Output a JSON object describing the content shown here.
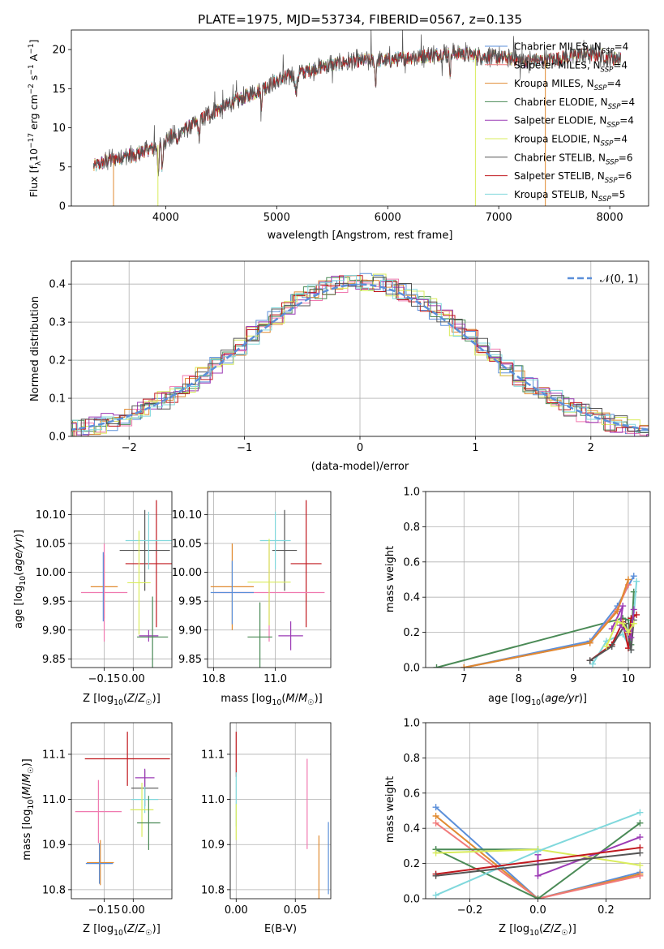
{
  "colors": {
    "Chabrier MILES": "#5b8fd9",
    "Salpeter MILES": "#f07a7a",
    "Kroupa MILES": "#e08a30",
    "Chabrier ELODIE": "#4a8a56",
    "Salpeter ELODIE": "#9c3bb5",
    "Kroupa ELODIE": "#d9ec5c",
    "Chabrier STELIB": "#555555",
    "Salpeter STELIB": "#c0181e",
    "Kroupa STELIB": "#80d8dc",
    "pink": "#f07ab0",
    "normal": "#5b8fd9"
  },
  "chart_data": [
    {
      "id": "spectrum",
      "type": "line",
      "title": "PLATE=1975, MJD=53734, FIBERID=0567, z=0.135",
      "xlabel": "wavelength [Angstrom, rest frame]",
      "ylabel": "Flux [f_λ 10^-17 erg cm^-2 s^-1 A^-1]",
      "xlim": [
        3150,
        8350
      ],
      "ylim": [
        0,
        22.5
      ],
      "xticks": [
        4000,
        5000,
        6000,
        7000,
        8000
      ],
      "yticks": [
        0,
        5,
        10,
        15,
        20
      ],
      "grid": false,
      "legend": "upper right",
      "legend_entries": [
        "Chabrier MILES, N_SSP=4",
        "Salpeter MILES, N_SSP=4",
        "Kroupa MILES, N_SSP=4",
        "Chabrier ELODIE, N_SSP=4",
        "Salpeter ELODIE, N_SSP=4",
        "Kroupa ELODIE, N_SSP=4",
        "Chabrier STELIB, N_SSP=6",
        "Salpeter STELIB, N_SSP=6",
        "Kroupa STELIB, N_SSP=5"
      ],
      "continuum": [
        [
          3350,
          5.0
        ],
        [
          3500,
          6.0
        ],
        [
          3700,
          6.5
        ],
        [
          3900,
          7.5
        ],
        [
          4000,
          8.5
        ],
        [
          4200,
          10.0
        ],
        [
          4400,
          11.8
        ],
        [
          4600,
          13.2
        ],
        [
          4800,
          14.5
        ],
        [
          5000,
          16.0
        ],
        [
          5200,
          17.0
        ],
        [
          5400,
          17.8
        ],
        [
          5600,
          18.4
        ],
        [
          5800,
          18.6
        ],
        [
          6000,
          18.6
        ],
        [
          6200,
          19.0
        ],
        [
          6400,
          19.3
        ],
        [
          6600,
          19.6
        ],
        [
          6800,
          19.2
        ],
        [
          7000,
          19.0
        ],
        [
          7200,
          18.6
        ],
        [
          7400,
          18.6
        ],
        [
          7600,
          19.0
        ],
        [
          7800,
          19.5
        ],
        [
          8000,
          19.0
        ],
        [
          8100,
          18.8
        ]
      ]
    },
    {
      "id": "residuals",
      "type": "line",
      "xlabel": "(data-model)/error",
      "ylabel": "Normed distribution",
      "xlim": [
        -2.5,
        2.5
      ],
      "ylim": [
        0,
        0.46
      ],
      "xticks": [
        -2,
        -1,
        0,
        1,
        2
      ],
      "yticks": [
        0.0,
        0.1,
        0.2,
        0.3,
        0.4
      ],
      "grid": true,
      "legend": "upper right",
      "legend_entries": [
        "𝒩(0, 1)"
      ]
    },
    {
      "id": "age-vs-Z",
      "type": "scatter",
      "xlabel": "Z [log10(Z/Z☉)]",
      "ylabel": "age  [log10(age/yr)]",
      "xlim": [
        -0.32,
        0.2
      ],
      "ylim": [
        9.835,
        10.14
      ],
      "xticks": [
        -0.15,
        0.0
      ],
      "yticks": [
        9.85,
        9.9,
        9.95,
        10.0,
        10.05,
        10.1
      ],
      "grid": true,
      "points": [
        {
          "model": "Salpeter STELIB",
          "x": 0.12,
          "xerr": 0.16,
          "y": 10.015,
          "yerr": 0.11
        },
        {
          "model": "Chabrier STELIB",
          "x": 0.06,
          "xerr": 0.13,
          "y": 10.038,
          "yerr": 0.07
        },
        {
          "model": "Kroupa STELIB",
          "x": 0.08,
          "xerr": 0.12,
          "y": 10.055,
          "yerr": 0.05
        },
        {
          "model": "Kroupa MILES",
          "x": -0.15,
          "xerr": 0.07,
          "y": 9.975,
          "yerr": 0.055
        },
        {
          "model": "pink",
          "x": -0.15,
          "xerr": 0.12,
          "y": 9.965,
          "yerr": 0.085
        },
        {
          "model": "Chabrier MILES",
          "x": -0.155,
          "xerr": 0.0,
          "y": 9.975,
          "yerr": 0.06
        },
        {
          "model": "Kroupa ELODIE",
          "x": 0.03,
          "xerr": 0.06,
          "y": 9.982,
          "yerr": 0.09
        },
        {
          "model": "Salpeter ELODIE",
          "x": 0.08,
          "xerr": 0.05,
          "y": 9.89,
          "yerr": 0.01
        },
        {
          "model": "Chabrier ELODIE",
          "x": 0.1,
          "xerr": 0.08,
          "y": 9.888,
          "yerr": 0.07
        }
      ]
    },
    {
      "id": "age-vs-mass",
      "type": "scatter",
      "xlabel": "mass [log10(M/M☉)]",
      "ylabel": "",
      "xlim": [
        10.78,
        11.18
      ],
      "ylim": [
        9.835,
        10.14
      ],
      "xticks": [
        10.8,
        11.0
      ],
      "yticks": [
        9.85,
        9.9,
        9.95,
        10.0,
        10.05,
        10.1
      ],
      "grid": true,
      "points": [
        {
          "model": "Salpeter STELIB",
          "x": 11.1,
          "xerr": 0.05,
          "y": 10.015,
          "yerr": 0.11
        },
        {
          "model": "Chabrier STELIB",
          "x": 11.03,
          "xerr": 0.04,
          "y": 10.038,
          "yerr": 0.07
        },
        {
          "model": "Kroupa STELIB",
          "x": 11.0,
          "xerr": 0.05,
          "y": 10.055,
          "yerr": 0.05
        },
        {
          "model": "Kroupa MILES",
          "x": 10.86,
          "xerr": 0.07,
          "y": 9.975,
          "yerr": 0.075
        },
        {
          "model": "pink",
          "x": 10.98,
          "xerr": 0.18,
          "y": 9.965,
          "yerr": 0.085
        },
        {
          "model": "Chabrier MILES",
          "x": 10.86,
          "xerr": 0.07,
          "y": 9.965,
          "yerr": 0.055
        },
        {
          "model": "Kroupa ELODIE",
          "x": 10.98,
          "xerr": 0.07,
          "y": 9.983,
          "yerr": 0.075
        },
        {
          "model": "Salpeter ELODIE",
          "x": 11.05,
          "xerr": 0.04,
          "y": 9.89,
          "yerr": 0.025
        },
        {
          "model": "Chabrier ELODIE",
          "x": 10.95,
          "xerr": 0.04,
          "y": 9.888,
          "yerr": 0.06
        }
      ]
    },
    {
      "id": "weight-vs-age",
      "type": "line",
      "xlabel": "age  [log10(age/yr)]",
      "ylabel": "mass weight",
      "xlim": [
        6.3,
        10.4
      ],
      "ylim": [
        0,
        1
      ],
      "xticks": [
        7,
        8,
        9,
        10
      ],
      "yticks": [
        0.0,
        0.2,
        0.4,
        0.6,
        0.8,
        1.0
      ],
      "grid": true,
      "series": [
        {
          "model": "Chabrier ELODIE",
          "x": [
            6.5,
            9.9,
            10.0,
            10.05,
            10.1
          ],
          "y": [
            0.0,
            0.28,
            0.27,
            0.13,
            0.43
          ]
        },
        {
          "model": "Chabrier MILES",
          "x": [
            7.0,
            9.3,
            9.8,
            10.1
          ],
          "y": [
            0.0,
            0.15,
            0.35,
            0.52
          ]
        },
        {
          "model": "Salpeter MILES",
          "x": [
            7.0,
            9.3,
            9.8,
            10.0
          ],
          "y": [
            0.0,
            0.14,
            0.33,
            0.47
          ]
        },
        {
          "model": "Kroupa MILES",
          "x": [
            7.0,
            9.3,
            9.8,
            10.0
          ],
          "y": [
            0.0,
            0.14,
            0.32,
            0.5
          ]
        },
        {
          "model": "Kroupa STELIB",
          "x": [
            9.35,
            9.6,
            9.9,
            10.05,
            10.15
          ],
          "y": [
            0.02,
            0.15,
            0.19,
            0.1,
            0.49
          ]
        },
        {
          "model": "Salpeter STELIB",
          "x": [
            9.3,
            9.7,
            9.9,
            10.0,
            10.05,
            10.15
          ],
          "y": [
            0.04,
            0.13,
            0.26,
            0.11,
            0.28,
            0.3
          ]
        },
        {
          "model": "Chabrier STELIB",
          "x": [
            9.3,
            9.7,
            9.95,
            10.05,
            10.1
          ],
          "y": [
            0.04,
            0.12,
            0.25,
            0.1,
            0.27
          ]
        },
        {
          "model": "Salpeter ELODIE",
          "x": [
            9.7,
            9.9,
            9.85,
            10.05,
            10.1
          ],
          "y": [
            0.22,
            0.35,
            0.24,
            0.17,
            0.33
          ]
        },
        {
          "model": "Kroupa ELODIE",
          "x": [
            9.6,
            9.8,
            9.9,
            10.0,
            10.1
          ],
          "y": [
            0.12,
            0.26,
            0.25,
            0.2,
            0.25
          ]
        }
      ]
    },
    {
      "id": "mass-vs-Z",
      "type": "scatter",
      "xlabel": "Z [log10(Z/Z☉)]",
      "ylabel": "mass [log10(M/M☉)]",
      "xlim": [
        -0.32,
        0.2
      ],
      "ylim": [
        10.78,
        11.17
      ],
      "xticks": [
        -0.15,
        0.0
      ],
      "yticks": [
        10.8,
        10.9,
        11.0,
        11.1
      ],
      "grid": true,
      "points": [
        {
          "model": "Salpeter STELIB",
          "x": -0.03,
          "xerr": 0.22,
          "y": 11.09,
          "yerr": 0.06
        },
        {
          "model": "Chabrier STELIB",
          "x": 0.06,
          "xerr": 0.07,
          "y": 11.025,
          "yerr": 0.04
        },
        {
          "model": "Kroupa STELIB",
          "x": 0.06,
          "xerr": 0.07,
          "y": 11.0,
          "yerr": 0.03
        },
        {
          "model": "Salpeter ELODIE",
          "x": 0.06,
          "xerr": 0.05,
          "y": 11.048,
          "yerr": 0.02
        },
        {
          "model": "pink",
          "x": -0.18,
          "xerr": 0.12,
          "y": 10.973,
          "yerr": 0.07
        },
        {
          "model": "Kroupa ELODIE",
          "x": 0.045,
          "xerr": 0.06,
          "y": 10.977,
          "yerr": 0.06
        },
        {
          "model": "Chabrier ELODIE",
          "x": 0.08,
          "xerr": 0.06,
          "y": 10.948,
          "yerr": 0.06
        },
        {
          "model": "Kroupa MILES",
          "x": -0.17,
          "xerr": 0.07,
          "y": 10.86,
          "yerr": 0.05
        },
        {
          "model": "Chabrier MILES",
          "x": -0.175,
          "xerr": 0.07,
          "y": 10.858,
          "yerr": 0.045
        }
      ]
    },
    {
      "id": "mass-vs-EBV",
      "type": "scatter",
      "xlabel": "E(B-V)",
      "ylabel": "",
      "xlim": [
        -0.005,
        0.08
      ],
      "ylim": [
        10.78,
        11.17
      ],
      "xticks": [
        0.0,
        0.05
      ],
      "yticks": [
        10.8,
        10.9,
        11.0,
        11.1
      ],
      "grid": true,
      "points": [
        {
          "model": "Salpeter STELIB",
          "x": 0.0,
          "xerr": 0.0,
          "y": 11.1,
          "yerr": 0.05
        },
        {
          "model": "Kroupa STELIB",
          "x": 0.0,
          "xerr": 0.0,
          "y": 11.0,
          "yerr": 0.06
        },
        {
          "model": "Kroupa ELODIE",
          "x": 0.0,
          "xerr": 0.0,
          "y": 10.95,
          "yerr": 0.04
        },
        {
          "model": "pink",
          "x": 0.06,
          "xerr": 0.0,
          "y": 10.99,
          "yerr": 0.1
        },
        {
          "model": "Kroupa MILES",
          "x": 0.07,
          "xerr": 0.0,
          "y": 10.85,
          "yerr": 0.07
        },
        {
          "model": "Chabrier MILES",
          "x": 0.078,
          "xerr": 0.0,
          "y": 10.87,
          "yerr": 0.08
        }
      ]
    },
    {
      "id": "weight-vs-Z",
      "type": "line",
      "xlabel": "Z [log10(Z/Z☉)]",
      "ylabel": "mass weight",
      "xlim": [
        -0.33,
        0.33
      ],
      "ylim": [
        0,
        1
      ],
      "xticks": [
        -0.2,
        0.0,
        0.2
      ],
      "yticks": [
        0.0,
        0.2,
        0.4,
        0.6,
        0.8,
        1.0
      ],
      "grid": true,
      "series": [
        {
          "model": "Chabrier MILES",
          "x": [
            -0.3,
            0.0,
            0.3
          ],
          "y": [
            0.52,
            0.0,
            0.15
          ]
        },
        {
          "model": "Kroupa MILES",
          "x": [
            -0.3,
            0.0,
            0.3
          ],
          "y": [
            0.47,
            0.0,
            0.14
          ]
        },
        {
          "model": "Salpeter MILES",
          "x": [
            -0.3,
            0.0,
            0.3
          ],
          "y": [
            0.43,
            0.0,
            0.13
          ]
        },
        {
          "model": "Chabrier ELODIE",
          "x": [
            -0.3,
            0.0,
            0.3
          ],
          "y": [
            0.28,
            0.0,
            0.43
          ]
        },
        {
          "model": "Chabrier ELODIE",
          "x": [
            -0.3,
            0.0
          ],
          "y": [
            0.28,
            0.28
          ]
        },
        {
          "model": "Salpeter ELODIE",
          "x": [
            0.0,
            0.0,
            0.3
          ],
          "y": [
            0.25,
            0.13,
            0.35
          ]
        },
        {
          "model": "Kroupa ELODIE",
          "x": [
            -0.3,
            0.0,
            0.3
          ],
          "y": [
            0.26,
            0.28,
            0.19
          ]
        },
        {
          "model": "Kroupa STELIB",
          "x": [
            -0.3,
            0.0,
            0.3
          ],
          "y": [
            0.02,
            0.27,
            0.49
          ]
        },
        {
          "model": "Salpeter STELIB",
          "x": [
            -0.3,
            0.3
          ],
          "y": [
            0.14,
            0.29
          ]
        },
        {
          "model": "Chabrier STELIB",
          "x": [
            -0.3,
            0.3
          ],
          "y": [
            0.13,
            0.26
          ]
        }
      ]
    }
  ]
}
